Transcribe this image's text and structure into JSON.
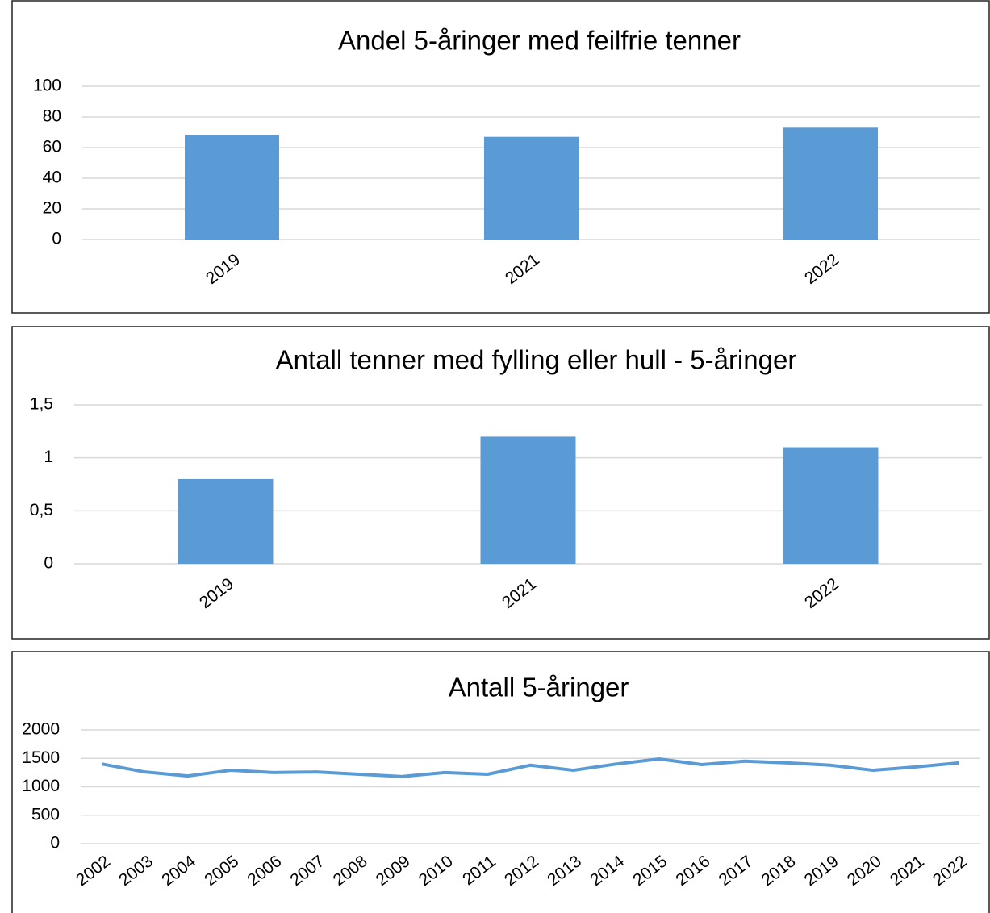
{
  "chart_data": [
    {
      "type": "bar",
      "title": "Andel 5-åringer med feilfrie tenner",
      "categories": [
        "2019",
        "2021",
        "2022"
      ],
      "values": [
        68,
        67,
        73
      ],
      "color": "#5b9bd5",
      "ylim": [
        0,
        100
      ],
      "yticks": [
        0,
        20,
        40,
        60,
        80,
        100
      ],
      "grid": true
    },
    {
      "type": "bar",
      "title": "Antall tenner med fylling eller hull - 5-åringer",
      "categories": [
        "2019",
        "2021",
        "2022"
      ],
      "values": [
        0.8,
        1.2,
        1.1
      ],
      "color": "#5b9bd5",
      "ylim": [
        0,
        1.5
      ],
      "yticks": [
        0,
        {
          "value": 0.5,
          "label": "0,5"
        },
        1,
        {
          "value": 1.5,
          "label": "1,5"
        }
      ],
      "grid": true
    },
    {
      "type": "line",
      "title": "Antall 5-åringer",
      "categories": [
        "2002",
        "2003",
        "2004",
        "2005",
        "2006",
        "2007",
        "2008",
        "2009",
        "2010",
        "2011",
        "2012",
        "2013",
        "2014",
        "2015",
        "2016",
        "2017",
        "2018",
        "2019",
        "2020",
        "2021",
        "2022"
      ],
      "values": [
        1400,
        1260,
        1190,
        1290,
        1250,
        1260,
        1220,
        1180,
        1250,
        1220,
        1380,
        1290,
        1400,
        1490,
        1390,
        1450,
        1420,
        1380,
        1290,
        1350,
        1420
      ],
      "color": "#5b9bd5",
      "ylim": [
        0,
        2000
      ],
      "yticks": [
        0,
        500,
        1000,
        1500,
        2000
      ],
      "grid": true
    }
  ]
}
